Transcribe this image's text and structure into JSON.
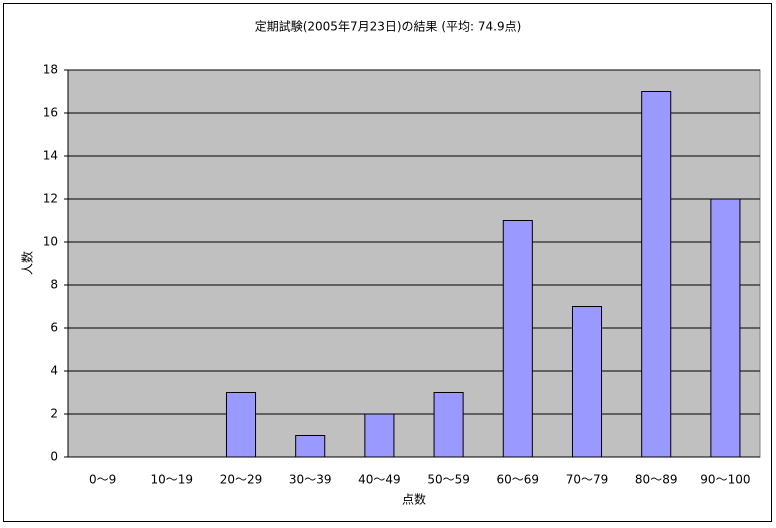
{
  "chart_data": {
    "type": "bar",
    "title": "定期試験(2005年7月23日)の結果 (平均: 74.9点)",
    "x_label": "点数",
    "y_label": "人数",
    "categories": [
      "0〜9",
      "10〜19",
      "20〜29",
      "30〜39",
      "40〜49",
      "50〜59",
      "60〜69",
      "70〜79",
      "80〜89",
      "90〜100"
    ],
    "values": [
      0,
      0,
      3,
      1,
      2,
      3,
      11,
      7,
      17,
      12
    ],
    "color": "#9999ff",
    "plot_background": "#c0c0c0",
    "ylim": [
      0,
      18
    ],
    "yticks": [
      0,
      2,
      4,
      6,
      8,
      10,
      12,
      14,
      16,
      18
    ],
    "grid": true
  }
}
